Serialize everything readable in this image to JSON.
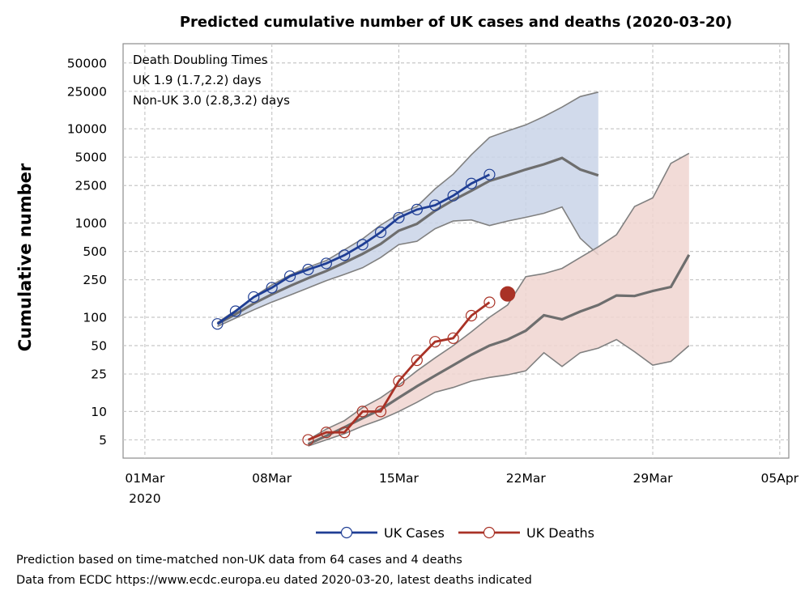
{
  "chart_data": {
    "type": "line",
    "title": "Predicted cumulative number of UK cases and deaths (2020-03-20)",
    "ylabel": "Cumulative number",
    "xlabel": "",
    "yscale": "log",
    "ylim": [
      3.2,
      80000
    ],
    "xlim": [
      -1.2,
      35.5
    ],
    "y_ticks": [
      5,
      10,
      25,
      50,
      100,
      250,
      500,
      1000,
      2500,
      5000,
      10000,
      25000,
      50000
    ],
    "x_ticks": [
      {
        "day": 0,
        "label": "01Mar",
        "sublabel": "2020"
      },
      {
        "day": 7,
        "label": "08Mar",
        "sublabel": ""
      },
      {
        "day": 14,
        "label": "15Mar",
        "sublabel": ""
      },
      {
        "day": 21,
        "label": "22Mar",
        "sublabel": ""
      },
      {
        "day": 28,
        "label": "29Mar",
        "sublabel": ""
      },
      {
        "day": 35,
        "label": "05Apr",
        "sublabel": ""
      }
    ],
    "grid": true,
    "annotation": [
      "Death Doubling Times",
      "UK 1.9 (1.7,2.2) days",
      "Non-UK 3.0 (2.8,3.2) days"
    ],
    "series": [
      {
        "name": "UK Cases",
        "color": "#1f3e94",
        "marker": "open-circle",
        "x": [
          4,
          5,
          6,
          7,
          8,
          9,
          10,
          11,
          12,
          13,
          14,
          15,
          16,
          17,
          18,
          19
        ],
        "values": [
          85,
          116,
          164,
          206,
          273,
          321,
          373,
          456,
          590,
          798,
          1140,
          1391,
          1543,
          1950,
          2626,
          3269
        ]
      },
      {
        "name": "UK Deaths",
        "color": "#a93226",
        "marker": "open-circle",
        "x": [
          9,
          10,
          11,
          12,
          13,
          14,
          15,
          16,
          17,
          18,
          19
        ],
        "values": [
          5,
          6,
          6,
          10,
          10,
          21,
          35,
          55,
          60,
          104,
          144
        ],
        "latest": {
          "x": 20,
          "value": 177
        }
      }
    ],
    "bands": [
      {
        "name": "Predicted cases",
        "fill": "#c9d3e8",
        "x": [
          4,
          5,
          6,
          7,
          8,
          9,
          10,
          11,
          12,
          13,
          14,
          15,
          16,
          17,
          18,
          19,
          20,
          21,
          22,
          23,
          24,
          25
        ],
        "median": [
          85,
          108,
          140,
          175,
          215,
          260,
          310,
          380,
          470,
          600,
          830,
          980,
          1350,
          1750,
          2200,
          2800,
          3200,
          3700,
          4200,
          4900,
          3700,
          3200
        ],
        "upper": [
          88,
          118,
          165,
          220,
          280,
          340,
          400,
          520,
          680,
          950,
          1250,
          1500,
          2300,
          3300,
          5300,
          8100,
          9500,
          11000,
          13500,
          17000,
          22000,
          24500
        ],
        "lower": [
          80,
          98,
          120,
          145,
          172,
          205,
          245,
          285,
          335,
          430,
          590,
          640,
          870,
          1050,
          1080,
          940,
          1050,
          1150,
          1270,
          1480,
          690,
          460
        ]
      },
      {
        "name": "Predicted deaths",
        "fill": "#f0d5d0",
        "x": [
          9,
          10,
          11,
          12,
          13,
          14,
          15,
          16,
          17,
          18,
          19,
          20,
          21,
          22,
          23,
          24,
          25,
          26,
          27,
          28,
          29,
          30
        ],
        "median": [
          4.5,
          5.5,
          6.8,
          8.5,
          10.5,
          14,
          18.5,
          24,
          31,
          40,
          50,
          58,
          72,
          105,
          95,
          115,
          135,
          170,
          168,
          190,
          210,
          460
        ],
        "upper": [
          5,
          6.5,
          8,
          11,
          14,
          19,
          27,
          37,
          50,
          70,
          100,
          135,
          270,
          290,
          330,
          430,
          560,
          750,
          1500,
          1850,
          4300,
          5500
        ],
        "lower": [
          4.3,
          5,
          5.8,
          7,
          8.2,
          10,
          12.5,
          16,
          18,
          21,
          23,
          24.5,
          27,
          42,
          30,
          42,
          47,
          58,
          43,
          31,
          34,
          50
        ]
      }
    ],
    "legend": [
      {
        "label": "UK Cases",
        "color": "#1f3e94"
      },
      {
        "label": "UK Deaths",
        "color": "#a93226"
      }
    ]
  },
  "footnotes": {
    "line1": "Prediction based on time-matched non-UK data from 64 cases and 4 deaths",
    "line2": "Data from ECDC https://www.ecdc.europa.eu dated 2020-03-20, latest deaths indicated"
  }
}
